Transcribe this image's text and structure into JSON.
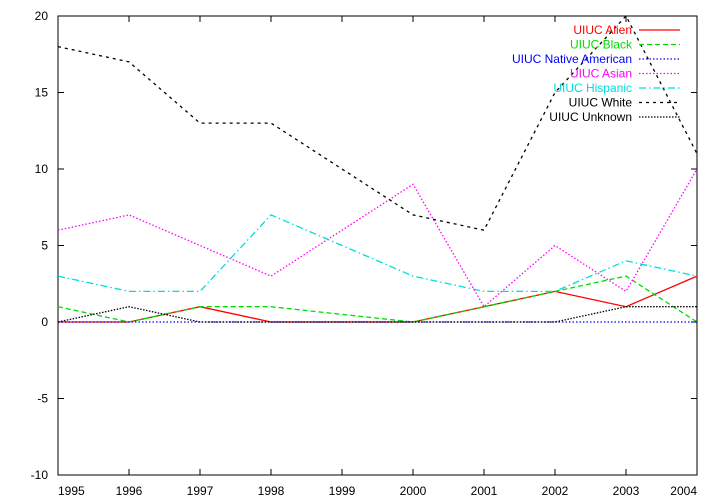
{
  "chart_data": {
    "type": "line",
    "x": [
      1995,
      1996,
      1997,
      1998,
      1999,
      2000,
      2001,
      2002,
      2003,
      2004
    ],
    "xlim": [
      1995,
      2004
    ],
    "ylim": [
      -10,
      20
    ],
    "xticks": [
      "1995",
      "1996",
      "1997",
      "1998",
      "1999",
      "2000",
      "2001",
      "2002",
      "2003",
      "2004"
    ],
    "yticks": [
      "-10",
      "-5",
      "0",
      "5",
      "10",
      "15",
      "20"
    ],
    "grid": false,
    "legend_position": "top-right",
    "series": [
      {
        "name": "UIUC Alien",
        "color": "#ff0000",
        "dash": "solid",
        "values": [
          0,
          0,
          1,
          0,
          0,
          0,
          1,
          2,
          1,
          3
        ]
      },
      {
        "name": "UIUC Black",
        "color": "#00dd00",
        "dash": "dashed",
        "values": [
          1,
          0,
          1,
          1,
          0.5,
          0,
          1,
          2,
          3,
          0
        ]
      },
      {
        "name": "UIUC Native American",
        "color": "#0000ff",
        "dash": "dotted",
        "values": [
          0,
          0,
          0,
          0,
          0,
          0,
          0,
          0,
          0,
          0
        ]
      },
      {
        "name": "UIUC Asian",
        "color": "#ff00ff",
        "dash": "dotted",
        "values": [
          6,
          7,
          5,
          3,
          6,
          9,
          1,
          5,
          2,
          10
        ]
      },
      {
        "name": "UIUC Hispanic",
        "color": "#00dddd",
        "dash": "dashdot",
        "values": [
          3,
          2,
          2,
          7,
          5,
          3,
          2,
          2,
          4,
          3
        ]
      },
      {
        "name": "UIUC White",
        "color": "#000000",
        "dash": "dashed-fine",
        "values": [
          18,
          17,
          13,
          13,
          10,
          7,
          6,
          15,
          20,
          11
        ]
      },
      {
        "name": "UIUC Unknown",
        "color": "#000000",
        "dash": "dotted-dense",
        "values": [
          0,
          1,
          0,
          0,
          0,
          0,
          0,
          0,
          1,
          1
        ]
      }
    ]
  }
}
